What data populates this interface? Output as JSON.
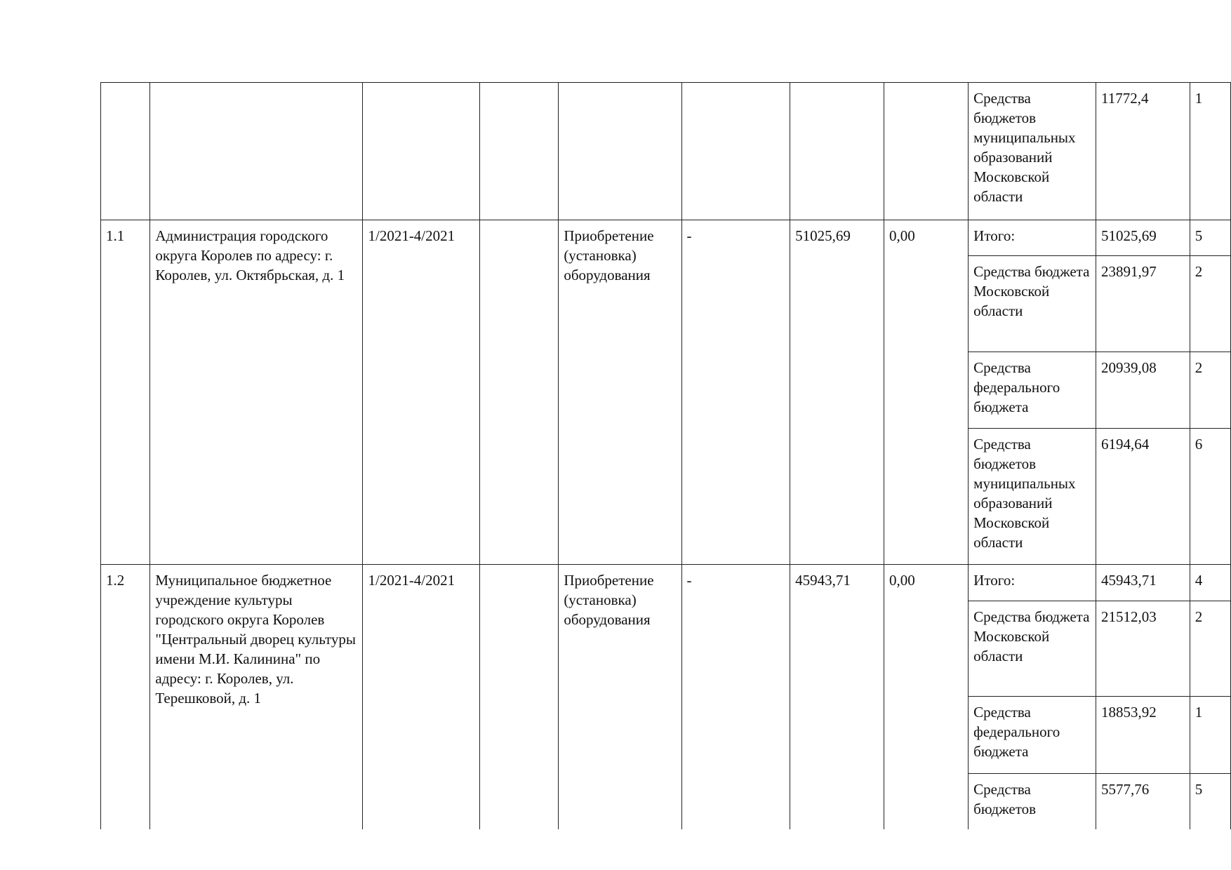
{
  "top_row": {
    "source": "Средства бюджетов муниципальных образований Московской области",
    "amount": "11772,4",
    "next": "1"
  },
  "rows": [
    {
      "num": "1.1",
      "object": "Администрация городского округа Королев по адресу: г. Королев, ул. Октябрьская, д. 1",
      "period": "1/2021-4/2021",
      "work": "Приобретение (установка) оборудования",
      "col6": "-",
      "cost": "51025,69",
      "financed": "0,00",
      "sources": [
        {
          "name": "Итого:",
          "amount": "51025,69",
          "next": "5"
        },
        {
          "name": "Средства бюджета Московской области",
          "amount": "23891,97",
          "next": "2"
        },
        {
          "name": "Средства федерального бюджета",
          "amount": "20939,08",
          "next": "2"
        },
        {
          "name": "Средства бюджетов муниципальных образований Московской области",
          "amount": "6194,64",
          "next": "6"
        }
      ]
    },
    {
      "num": "1.2",
      "object": "Муниципальное бюджетное учреждение культуры городского округа Королев \"Центральный дворец культуры имени М.И. Калинина\" по адресу: г. Королев, ул. Терешковой, д. 1",
      "period": "1/2021-4/2021",
      "work": "Приобретение (установка) оборудования",
      "col6": "-",
      "cost": "45943,71",
      "financed": "0,00",
      "sources": [
        {
          "name": "Итого:",
          "amount": "45943,71",
          "next": "4"
        },
        {
          "name": "Средства бюджета Московской области",
          "amount": "21512,03",
          "next": "2"
        },
        {
          "name": "Средства федерального бюджета",
          "amount": "18853,92",
          "next": "1"
        },
        {
          "name": "Средства бюджетов",
          "amount": "5577,76",
          "next": "5"
        }
      ]
    }
  ]
}
